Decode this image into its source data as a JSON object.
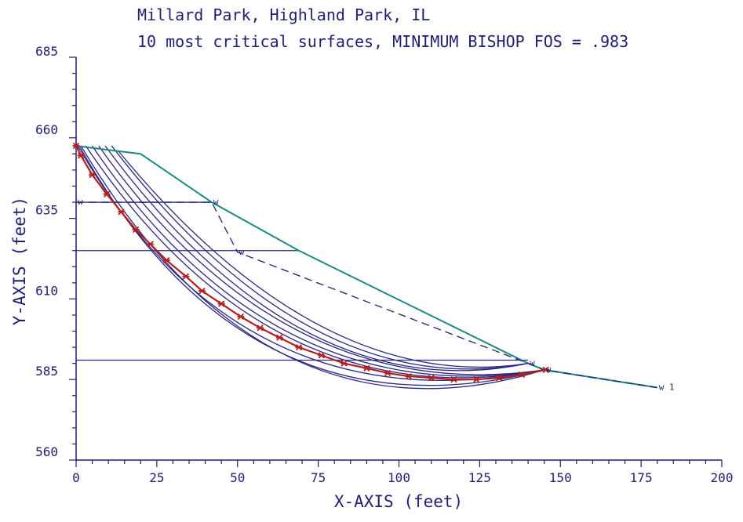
{
  "chart_data": {
    "type": "line",
    "title_line1": "Millard Park, Highland Park, IL",
    "title_line2": "10 most critical surfaces, MINIMUM BISHOP FOS =   .983",
    "xlabel": "X-AXIS (feet)",
    "ylabel": "Y-AXIS (feet)",
    "xlim": [
      0,
      200
    ],
    "ylim": [
      560,
      685
    ],
    "x_ticks": [
      0,
      25,
      50,
      75,
      100,
      125,
      150,
      175,
      200
    ],
    "y_ticks": [
      560,
      585,
      610,
      635,
      660
    ],
    "y_top_label": 685,
    "colors": {
      "axis": "#1f1f73",
      "surface": "#2a2a82",
      "critical": "#b51f1f",
      "ground": "#188a80",
      "water": "#1f1f73"
    },
    "ground_surface": [
      [
        0,
        657.5
      ],
      [
        20,
        655
      ],
      [
        42,
        640
      ],
      [
        69,
        625
      ],
      [
        140,
        590
      ],
      [
        145,
        588
      ],
      [
        180,
        582.5
      ]
    ],
    "water_table": [
      [
        0,
        640
      ],
      [
        42,
        640
      ],
      [
        50,
        624.5
      ],
      [
        140,
        590
      ],
      [
        145,
        588
      ],
      [
        180,
        582.5
      ]
    ],
    "horizontal_layers": [
      {
        "x": [
          0,
          42
        ],
        "y": 640
      },
      {
        "x": [
          0,
          69
        ],
        "y": 625
      },
      {
        "x": [
          0,
          140
        ],
        "y": 591
      }
    ],
    "water_markers": [
      {
        "label": "w",
        "x": 0,
        "y": 640
      },
      {
        "label": "w",
        "x": 42,
        "y": 640
      },
      {
        "label": "w",
        "x": 50,
        "y": 624.5
      },
      {
        "label": "w",
        "x": 140,
        "y": 590
      },
      {
        "label": "w",
        "x": 145,
        "y": 588
      },
      {
        "label": "w 1",
        "x": 180,
        "y": 582.5
      }
    ],
    "critical_surface": {
      "name": "critical",
      "x": [
        0,
        1.5,
        5,
        9.5,
        14,
        18.5,
        23,
        28,
        34,
        39,
        45,
        51,
        57,
        63,
        69,
        76,
        83,
        90,
        96.5,
        103,
        110,
        117,
        124,
        131,
        138,
        145.5
      ],
      "y": [
        657.5,
        654.5,
        648.5,
        642.5,
        637,
        631.5,
        627,
        622,
        617,
        612.5,
        608.5,
        604.5,
        601,
        598,
        595,
        592.5,
        590,
        588.5,
        587,
        586,
        585.5,
        585,
        585,
        585.5,
        586.5,
        588
      ]
    },
    "surfaces": [
      {
        "start": [
          0.5,
          657.5
        ],
        "mid": [
          62,
          596
        ],
        "end": [
          145,
          588
        ]
      },
      {
        "start": [
          1,
          657.5
        ],
        "mid": [
          63,
          593.5
        ],
        "end": [
          145,
          588
        ]
      },
      {
        "start": [
          1.5,
          657.5
        ],
        "mid": [
          66,
          592
        ],
        "end": [
          145,
          588
        ]
      },
      {
        "start": [
          3,
          657.5
        ],
        "mid": [
          67,
          597.5
        ],
        "end": [
          145,
          588
        ]
      },
      {
        "start": [
          5,
          657.5
        ],
        "mid": [
          68,
          598.5
        ],
        "end": [
          145,
          588
        ]
      },
      {
        "start": [
          7,
          657.5
        ],
        "mid": [
          70,
          599.5
        ],
        "end": [
          145,
          588
        ]
      },
      {
        "start": [
          9,
          657.5
        ],
        "mid": [
          72,
          599.5
        ],
        "end": [
          140,
          590
        ]
      },
      {
        "start": [
          11,
          657.5
        ],
        "mid": [
          74,
          600.5
        ],
        "end": [
          140,
          590
        ]
      },
      {
        "start": [
          13,
          656
        ],
        "mid": [
          76,
          601.5
        ],
        "end": [
          140,
          590
        ]
      }
    ]
  }
}
